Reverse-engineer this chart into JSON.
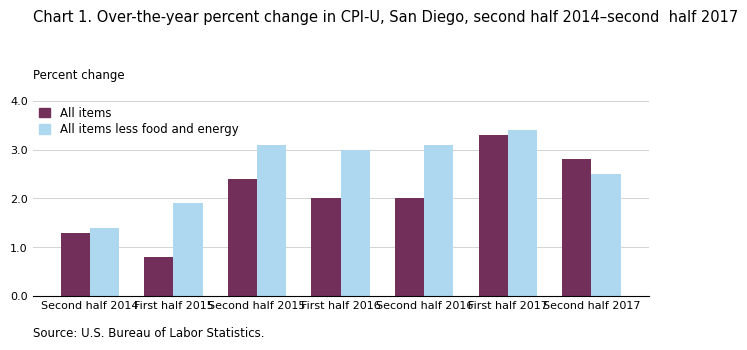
{
  "title": "Chart 1. Over-the-year percent change in CPI-U, San Diego, second half 2014–second  half 2017",
  "ylabel": "Percent change",
  "source": "Source: U.S. Bureau of Labor Statistics.",
  "categories": [
    "Second half 2014",
    "First half 2015",
    "Second half 2015",
    "First half 2016",
    "Second half 2016",
    "First half 2017",
    "Second half 2017"
  ],
  "all_items": [
    1.3,
    0.8,
    2.4,
    2.0,
    2.0,
    3.3,
    2.8
  ],
  "all_items_less": [
    1.4,
    1.9,
    3.1,
    3.0,
    3.1,
    3.4,
    2.5
  ],
  "color_all_items": "#722F5A",
  "color_all_items_less": "#ADD8F0",
  "ylim": [
    0,
    4.0
  ],
  "yticks": [
    0.0,
    1.0,
    2.0,
    3.0,
    4.0
  ],
  "bar_width": 0.35,
  "legend_all_items": "All items",
  "legend_all_items_less": "All items less food and energy",
  "title_fontsize": 10.5,
  "label_fontsize": 8.5,
  "tick_fontsize": 8.0
}
